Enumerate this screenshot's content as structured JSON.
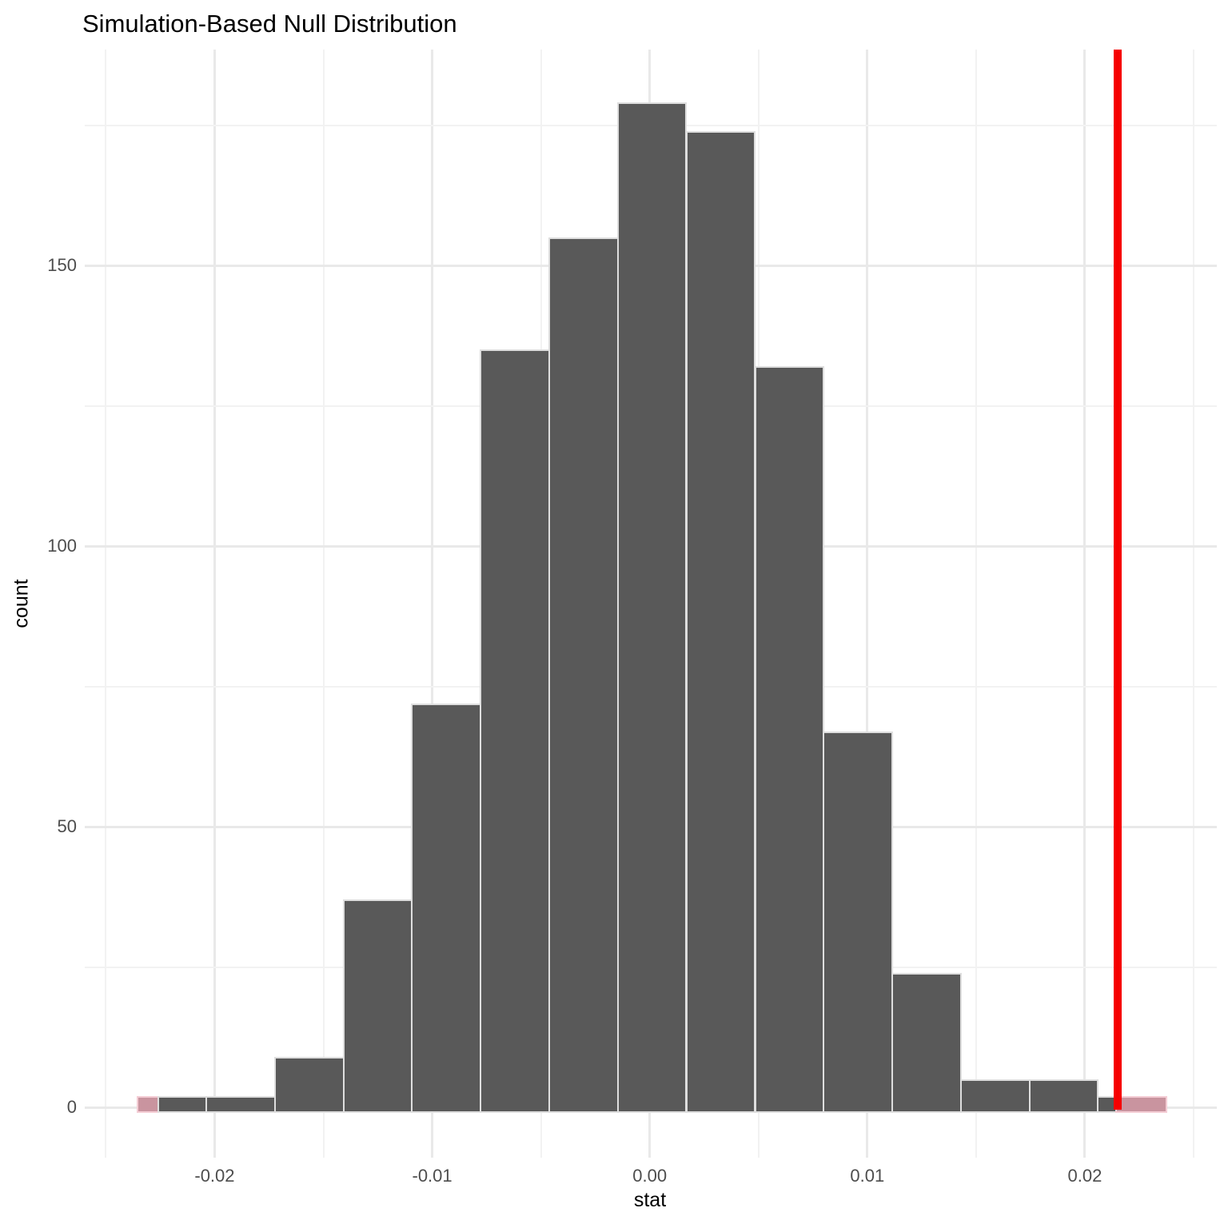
{
  "chart_data": {
    "type": "histogram",
    "title": "Simulation-Based Null Distribution",
    "xlabel": "stat",
    "ylabel": "count",
    "n_simulations": 1000,
    "observed_stat": 0.0215,
    "shade_direction": "two-sided",
    "bin_width": 0.00315,
    "xlim": [
      -0.026,
      0.026
    ],
    "ylim": [
      -9.4,
      188.4
    ],
    "x_ticks": [
      {
        "value": -0.02,
        "label": "-0.02"
      },
      {
        "value": -0.01,
        "label": "-0.01"
      },
      {
        "value": 0.0,
        "label": "0.00"
      },
      {
        "value": 0.01,
        "label": "0.01"
      },
      {
        "value": 0.02,
        "label": "0.02"
      }
    ],
    "x_minor_ticks": [
      -0.025,
      -0.015,
      -0.005,
      0.005,
      0.015,
      0.025
    ],
    "y_ticks": [
      {
        "value": 0,
        "label": "0"
      },
      {
        "value": 50,
        "label": "50"
      },
      {
        "value": 100,
        "label": "100"
      },
      {
        "value": 150,
        "label": "150"
      }
    ],
    "y_minor_ticks": [
      25,
      75,
      125,
      175
    ],
    "bars": [
      {
        "x0": -0.02361,
        "x1": -0.02266,
        "count": 2,
        "role": "shaded"
      },
      {
        "x0": -0.02266,
        "x1": -0.02046,
        "count": 2,
        "role": "null"
      },
      {
        "x0": -0.02046,
        "x1": -0.01731,
        "count": 2,
        "role": "null"
      },
      {
        "x0": -0.01731,
        "x1": -0.01415,
        "count": 9,
        "role": "null"
      },
      {
        "x0": -0.01415,
        "x1": -0.011,
        "count": 37,
        "role": "null"
      },
      {
        "x0": -0.011,
        "x1": -0.00785,
        "count": 72,
        "role": "null"
      },
      {
        "x0": -0.00785,
        "x1": -0.00469,
        "count": 135,
        "role": "null"
      },
      {
        "x0": -0.00469,
        "x1": -0.00154,
        "count": 155,
        "role": "null"
      },
      {
        "x0": -0.00154,
        "x1": 0.00161,
        "count": 179,
        "role": "null"
      },
      {
        "x0": 0.00161,
        "x1": 0.00477,
        "count": 174,
        "role": "null"
      },
      {
        "x0": 0.00477,
        "x1": 0.00792,
        "count": 132,
        "role": "null"
      },
      {
        "x0": 0.00792,
        "x1": 0.01107,
        "count": 67,
        "role": "null"
      },
      {
        "x0": 0.01107,
        "x1": 0.01423,
        "count": 24,
        "role": "null"
      },
      {
        "x0": 0.01423,
        "x1": 0.01738,
        "count": 5,
        "role": "null"
      },
      {
        "x0": 0.01738,
        "x1": 0.02053,
        "count": 5,
        "role": "null"
      },
      {
        "x0": 0.02053,
        "x1": 0.02137,
        "count": 2,
        "role": "null"
      },
      {
        "x0": 0.02137,
        "x1": 0.02369,
        "count": 2,
        "role": "shaded"
      }
    ],
    "colors": {
      "bar_fill": "#595959",
      "bar_border": "#dedede",
      "shade_fill": "#c9949f",
      "shade_border": "#f4cdd5",
      "obs_line": "#f60000",
      "grid_major": "#e9e9e9",
      "grid_minor": "#f2f2f2",
      "tick_text": "#4d4d4d",
      "title_text": "#000000"
    }
  }
}
